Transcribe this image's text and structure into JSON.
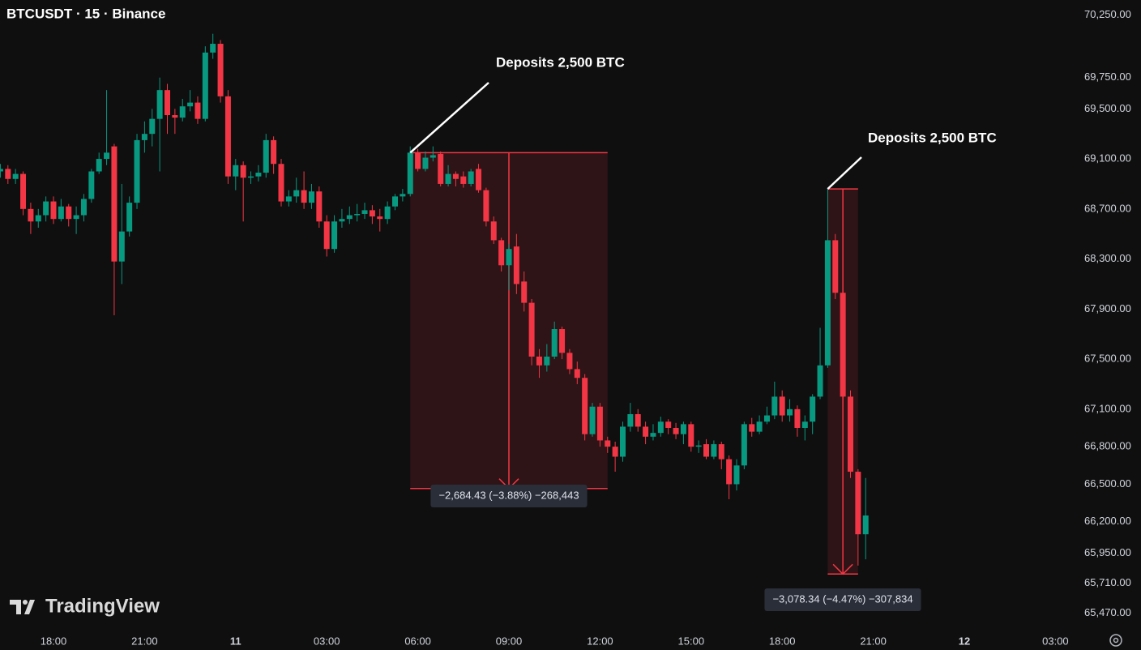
{
  "chart_data": {
    "type": "candlestick",
    "title": "BTCUSDT · 15 · Binance",
    "brand": "TradingView",
    "categories": [
      null,
      null,
      null,
      null,
      null,
      null,
      null,
      "18:00",
      null,
      null,
      null,
      null,
      null,
      null,
      null,
      null,
      null,
      null,
      null,
      "21:00",
      null,
      null,
      null,
      null,
      null,
      null,
      null,
      null,
      null,
      null,
      null,
      "11",
      null,
      null,
      null,
      null,
      null,
      null,
      null,
      null,
      null,
      null,
      null,
      "03:00",
      null,
      null,
      null,
      null,
      null,
      null,
      null,
      null,
      null,
      null,
      null,
      "06:00",
      null,
      null,
      null,
      null,
      null,
      null,
      null,
      null,
      null,
      null,
      null,
      "09:00",
      null,
      null,
      null,
      null,
      null,
      null,
      null,
      null,
      null,
      null,
      null,
      "12:00",
      null,
      null,
      null,
      null,
      null,
      null,
      null,
      null,
      null,
      null,
      null,
      "15:00",
      null,
      null,
      null,
      null,
      null,
      null,
      null,
      null,
      null,
      null,
      null,
      "18:00",
      null,
      null,
      null,
      null,
      null,
      null,
      null,
      null,
      null,
      null,
      null,
      "21:00",
      null,
      null,
      null,
      null,
      null,
      null,
      null,
      null,
      null,
      null,
      null,
      "12",
      null,
      null,
      null,
      null,
      null,
      null,
      null,
      null,
      null,
      null,
      null,
      "03:00",
      null,
      null
    ],
    "open": [
      69000,
      69020,
      68940,
      68980,
      68700,
      68600,
      68650,
      68760,
      68620,
      68720,
      68620,
      68650,
      68780,
      69000,
      69100,
      69200,
      68280,
      68520,
      68750,
      69250,
      69300,
      69420,
      69650,
      69450,
      69430,
      69520,
      69550,
      69420,
      69950,
      70020,
      69600,
      68960,
      69050,
      68950,
      68960,
      68990,
      69250,
      69060,
      68760,
      68800,
      68850,
      68750,
      68840,
      68600,
      68380,
      68600,
      68620,
      68650,
      68660,
      68690,
      68640,
      68620,
      68720,
      68800,
      68820,
      69150,
      69020,
      69110,
      69140,
      68900,
      68980,
      68960,
      68900,
      69020,
      68850,
      68600,
      68450,
      68250,
      68400,
      68120,
      67950,
      67520,
      67450,
      67520,
      67740,
      67550,
      67420,
      67350,
      66900,
      67120,
      66850,
      66800,
      66720,
      66960,
      67060,
      66960,
      66880,
      66910,
      67000,
      66950,
      66900,
      66980,
      66800,
      66820,
      66720,
      66820,
      66700,
      66500,
      66650,
      66980,
      66920,
      67000,
      67050,
      67200,
      67050,
      67100,
      66950,
      67000,
      67200,
      67450,
      68450,
      68030,
      67200,
      66600,
      66100,
      null,
      null,
      null,
      null,
      null,
      null,
      null,
      null,
      null,
      null,
      null,
      null,
      null,
      null,
      null,
      null,
      null,
      null,
      null,
      null,
      null,
      null,
      null,
      null,
      null,
      null,
      null
    ],
    "high": [
      69060,
      69050,
      69020,
      69000,
      68750,
      68700,
      68800,
      68800,
      68780,
      68740,
      68720,
      68820,
      69020,
      69150,
      69650,
      69220,
      68900,
      68800,
      69300,
      69400,
      69500,
      69750,
      69700,
      69500,
      69580,
      69650,
      69600,
      70000,
      70100,
      70050,
      69650,
      69100,
      69080,
      69000,
      69050,
      69300,
      69280,
      69100,
      68850,
      68950,
      69000,
      68900,
      68880,
      68650,
      68650,
      68700,
      68720,
      68740,
      68750,
      68730,
      68700,
      68760,
      68820,
      68860,
      69200,
      69180,
      69160,
      69200,
      69160,
      69050,
      69000,
      69000,
      69020,
      69060,
      68870,
      68640,
      68470,
      68420,
      68500,
      68200,
      67980,
      67580,
      67620,
      67800,
      67760,
      67580,
      67480,
      67380,
      67150,
      67150,
      66880,
      66840,
      67000,
      67150,
      67100,
      67000,
      66980,
      67040,
      67020,
      66990,
      67000,
      67000,
      66850,
      66860,
      66850,
      66840,
      66730,
      66700,
      67000,
      67030,
      67050,
      67120,
      67320,
      67250,
      67180,
      67130,
      67050,
      67220,
      67750,
      68860,
      68500,
      68050,
      67250,
      66620,
      66550,
      null,
      null,
      null,
      null,
      null,
      null,
      null,
      null,
      null,
      null,
      null,
      null,
      null,
      null,
      null,
      null,
      null,
      null,
      null,
      null,
      null,
      null,
      null,
      null,
      null,
      null,
      null
    ],
    "low": [
      68950,
      68900,
      68900,
      68650,
      68500,
      68550,
      68600,
      68580,
      68600,
      68560,
      68500,
      68600,
      68750,
      68980,
      69050,
      67850,
      68100,
      68480,
      68700,
      69150,
      69200,
      69000,
      69300,
      69300,
      69400,
      69480,
      69380,
      69400,
      69900,
      69550,
      68900,
      68850,
      68600,
      68900,
      68920,
      68950,
      68980,
      68720,
      68720,
      68750,
      68700,
      68700,
      68550,
      68320,
      68350,
      68550,
      68580,
      68600,
      68620,
      68580,
      68520,
      68580,
      68690,
      68760,
      68800,
      69000,
      69000,
      69080,
      68880,
      68880,
      68880,
      68870,
      68880,
      68830,
      68560,
      68420,
      68200,
      68050,
      68020,
      67880,
      67450,
      67350,
      67400,
      67500,
      67500,
      67380,
      67300,
      66850,
      66880,
      66800,
      66750,
      66600,
      66680,
      66920,
      66920,
      66820,
      66850,
      66880,
      66900,
      66860,
      66820,
      66760,
      66750,
      66700,
      66700,
      66620,
      66380,
      66450,
      66620,
      66880,
      66900,
      66980,
      67020,
      67000,
      67000,
      66880,
      66850,
      66900,
      67180,
      67430,
      67980,
      67150,
      66550,
      65850,
      65900,
      null,
      null,
      null,
      null,
      null,
      null,
      null,
      null,
      null,
      null,
      null,
      null,
      null,
      null,
      null,
      null,
      null,
      null,
      null,
      null,
      null,
      null,
      null,
      null,
      null,
      null,
      null
    ],
    "close": [
      69020,
      68940,
      68980,
      68700,
      68600,
      68650,
      68760,
      68620,
      68720,
      68620,
      68650,
      68780,
      69000,
      69100,
      69150,
      68280,
      68520,
      68750,
      69250,
      69300,
      69420,
      69650,
      69450,
      69430,
      69520,
      69550,
      69420,
      69950,
      70020,
      69600,
      68960,
      69050,
      68950,
      68960,
      68990,
      69250,
      69060,
      68760,
      68800,
      68850,
      68750,
      68840,
      68600,
      68380,
      68600,
      68620,
      68650,
      68660,
      68690,
      68640,
      68620,
      68720,
      68800,
      68820,
      69150,
      69020,
      69110,
      69130,
      68900,
      68980,
      68940,
      68900,
      69000,
      68850,
      68600,
      68450,
      68250,
      68380,
      68100,
      67950,
      67520,
      67450,
      67520,
      67740,
      67550,
      67420,
      67350,
      66900,
      67120,
      66850,
      66800,
      66720,
      66960,
      67060,
      66960,
      66880,
      66910,
      67000,
      66950,
      66900,
      66980,
      66800,
      66810,
      66720,
      66820,
      66700,
      66500,
      66650,
      66980,
      66920,
      67000,
      67050,
      67200,
      67050,
      67100,
      66950,
      67000,
      67200,
      67450,
      68450,
      68030,
      67200,
      66600,
      66100,
      66250,
      null,
      null,
      null,
      null,
      null,
      null,
      null,
      null,
      null,
      null,
      null,
      null,
      null,
      null,
      null,
      null,
      null,
      null,
      null,
      null,
      null,
      null,
      null,
      null,
      null,
      null,
      null
    ],
    "up_color": "#089981",
    "down_color": "#f23645",
    "ylim": [
      65350,
      70370
    ],
    "yticks": [
      {
        "value": 70250,
        "label": "70,250.00"
      },
      {
        "value": 69750,
        "label": "69,750.00"
      },
      {
        "value": 69500,
        "label": "69,500.00"
      },
      {
        "value": 69100,
        "label": "69,100.00"
      },
      {
        "value": 68700,
        "label": "68,700.00"
      },
      {
        "value": 68300,
        "label": "68,300.00"
      },
      {
        "value": 67900,
        "label": "67,900.00"
      },
      {
        "value": 67500,
        "label": "67,500.00"
      },
      {
        "value": 67100,
        "label": "67,100.00"
      },
      {
        "value": 66800,
        "label": "66,800.00"
      },
      {
        "value": 66500,
        "label": "66,500.00"
      },
      {
        "value": 66200,
        "label": "66,200.00"
      },
      {
        "value": 65950,
        "label": "65,950.00"
      },
      {
        "value": 65710,
        "label": "65,710.00"
      },
      {
        "value": 65470,
        "label": "65,470.00"
      }
    ],
    "grid": false,
    "measures": [
      {
        "top": 69150,
        "bottom": 66466,
        "label": "−2,684.43 (−3.88%) −268,443",
        "note": "Deposits 2,500 BTC"
      },
      {
        "top": 68860,
        "bottom": 65782,
        "label": "−3,078.34 (−4.47%) −307,834",
        "note": "Deposits 2,500 BTC"
      }
    ]
  }
}
